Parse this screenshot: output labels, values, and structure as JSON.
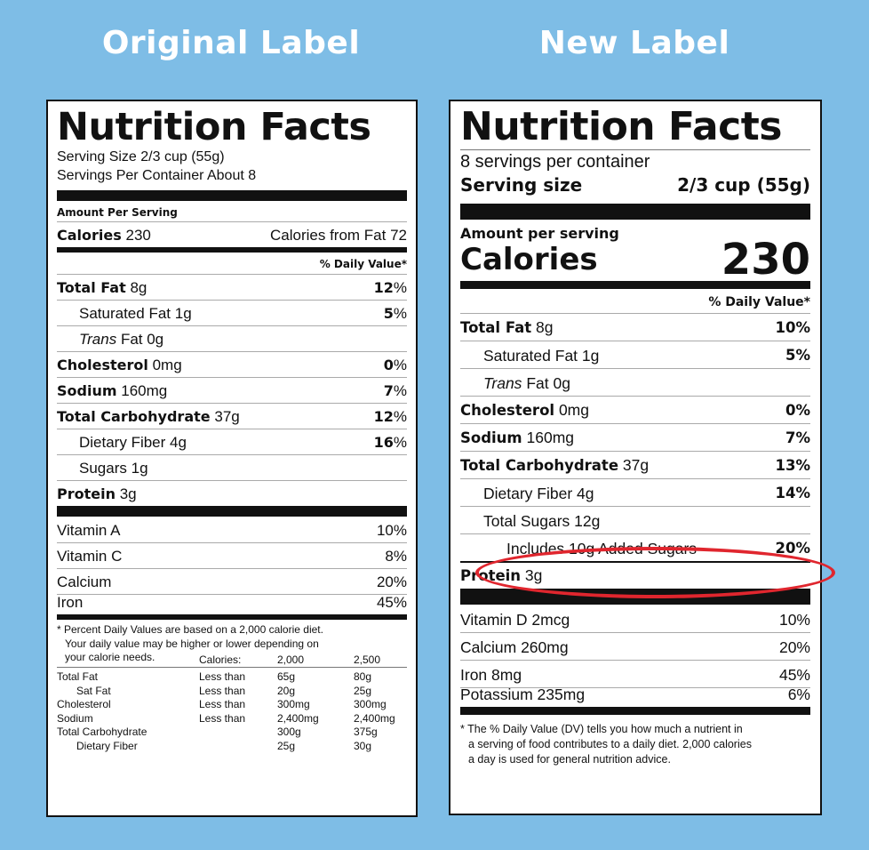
{
  "headings": {
    "left": "Original Label",
    "right": "New Label"
  },
  "original": {
    "title": "Nutrition Facts",
    "serving_size": "Serving Size 2/3 cup (55g)",
    "servings_per_container": "Servings Per Container About 8",
    "amount_per_serving": "Amount Per Serving",
    "calories_label": "Calories",
    "calories_value": "230",
    "calories_from_fat": "Calories from Fat 72",
    "dv_header": "% Daily Value*",
    "nutrients": [
      {
        "name": "Total Fat",
        "amount": "8g",
        "dv": "12",
        "bold": true
      },
      {
        "name": "Saturated Fat",
        "amount": "1g",
        "dv": "5"
      },
      {
        "name": "Trans",
        "amount": "Fat 0g",
        "dv": ""
      },
      {
        "name": "Cholesterol",
        "amount": "0mg",
        "dv": "0",
        "bold": true
      },
      {
        "name": "Sodium",
        "amount": "160mg",
        "dv": "7",
        "bold": true
      },
      {
        "name": "Total Carbohydrate",
        "amount": "37g",
        "dv": "12",
        "bold": true
      },
      {
        "name": "Dietary Fiber",
        "amount": "4g",
        "dv": "16"
      },
      {
        "name": "Sugars",
        "amount": "1g",
        "dv": ""
      },
      {
        "name": "Protein",
        "amount": "3g",
        "dv": "",
        "bold": true
      }
    ],
    "vitamins": [
      {
        "name": "Vitamin A",
        "dv": "10%"
      },
      {
        "name": "Vitamin C",
        "dv": "8%"
      },
      {
        "name": "Calcium",
        "dv": "20%"
      },
      {
        "name": "Iron",
        "dv": "45%"
      }
    ],
    "footnote": [
      "* Percent Daily Values are based on a 2,000 calorie diet.",
      "Your daily value may be higher or lower depending on",
      "your calorie needs."
    ],
    "footer_table": {
      "header": [
        "Calories:",
        "2,000",
        "2,500"
      ],
      "rows": [
        [
          "Total Fat",
          "Less than",
          "65g",
          "80g"
        ],
        [
          "Sat Fat",
          "Less than",
          "20g",
          "25g"
        ],
        [
          "Cholesterol",
          "Less than",
          "300mg",
          "300mg"
        ],
        [
          "Sodium",
          "Less than",
          "2,400mg",
          "2,400mg"
        ],
        [
          "Total Carbohydrate",
          "",
          "300g",
          "375g"
        ],
        [
          "Dietary Fiber",
          "",
          "25g",
          "30g"
        ]
      ]
    }
  },
  "new": {
    "title": "Nutrition Facts",
    "servings_per_container": "8 servings per container",
    "serving_size_label": "Serving size",
    "serving_size_value": "2/3 cup (55g)",
    "amount_per_serving": "Amount per serving",
    "calories_label": "Calories",
    "calories_value": "230",
    "dv_header": "% Daily Value*",
    "nutrients": [
      {
        "name": "Total Fat",
        "amount": "8g",
        "dv": "10%"
      },
      {
        "name": "Saturated Fat",
        "amount": "1g",
        "dv": "5%"
      },
      {
        "name": "Trans",
        "amount": "Fat 0g",
        "dv": ""
      },
      {
        "name": "Cholesterol",
        "amount": "0mg",
        "dv": "0%"
      },
      {
        "name": "Sodium",
        "amount": "160mg",
        "dv": "7%"
      },
      {
        "name": "Total Carbohydrate",
        "amount": "37g",
        "dv": "13%"
      },
      {
        "name": "Dietary Fiber",
        "amount": "4g",
        "dv": "14%"
      },
      {
        "name": "Total Sugars",
        "amount": "12g",
        "dv": ""
      },
      {
        "name": "Includes 10g Added Sugars",
        "amount": "",
        "dv": "20%"
      },
      {
        "name": "Protein",
        "amount": "3g",
        "dv": ""
      }
    ],
    "vitamins": [
      {
        "name": "Vitamin D 2mcg",
        "dv": "10%"
      },
      {
        "name": "Calcium 260mg",
        "dv": "20%"
      },
      {
        "name": "Iron 8mg",
        "dv": "45%"
      },
      {
        "name": "Potassium 235mg",
        "dv": "6%"
      }
    ],
    "footnote": [
      "* The % Daily Value (DV) tells you how much a nutrient in",
      "a serving of food contributes to a daily diet. 2,000 calories",
      "a day is used for general nutrition advice."
    ]
  },
  "colors": {
    "background": "#7ebde6",
    "highlight": "#e0262e"
  }
}
